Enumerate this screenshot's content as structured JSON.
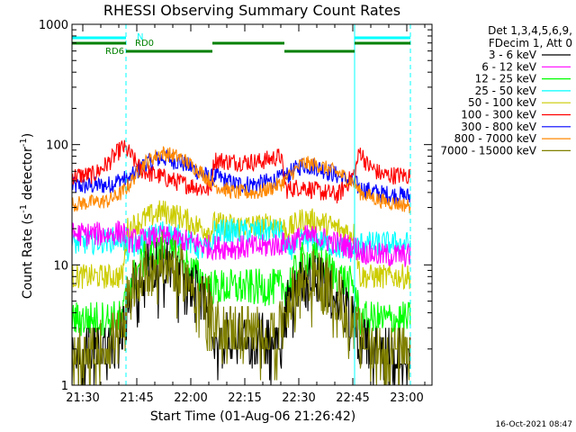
{
  "chart_data": {
    "type": "line",
    "title": "RHESSI Observing Summary Count Rates",
    "xlabel": "Start Time (01-Aug-06 21:26:42)",
    "ylabel_main": "Count Rate (s",
    "ylabel_sup1": "-1",
    "ylabel_mid": " detector",
    "ylabel_sup2": "-1",
    "ylabel_end": ")",
    "yscale": "log",
    "xlim_min": [
      0,
      100
    ],
    "ylim": [
      1,
      1000
    ],
    "x_ticks": [
      {
        "value": 3,
        "label": "21:30"
      },
      {
        "value": 18,
        "label": "21:45"
      },
      {
        "value": 33,
        "label": "22:00"
      },
      {
        "value": 48,
        "label": "22:15"
      },
      {
        "value": 63,
        "label": "22:30"
      },
      {
        "value": 78,
        "label": "22:45"
      },
      {
        "value": 93,
        "label": "23:00"
      }
    ],
    "y_ticks": [
      {
        "value": 1,
        "label": "1"
      },
      {
        "value": 10,
        "label": "10"
      },
      {
        "value": 100,
        "label": "100"
      },
      {
        "value": 1000,
        "label": "1000"
      }
    ],
    "night_boundaries": [
      0,
      15,
      78.5,
      94
    ],
    "eclipse_ranges": [
      [
        0,
        15
      ],
      [
        78.5,
        94
      ]
    ],
    "flags": [
      {
        "name": "N",
        "color": "#00ffff",
        "y": 0,
        "segments": [
          [
            0,
            15
          ],
          [
            78.5,
            94
          ]
        ]
      },
      {
        "name": "RD0",
        "color": "#008000",
        "y": 1,
        "segments": [
          [
            0,
            15
          ],
          [
            39,
            59
          ],
          [
            78.5,
            94
          ]
        ]
      },
      {
        "name": "RD6",
        "color": "#008000",
        "y": 2,
        "segments": [
          [
            15,
            39
          ],
          [
            59,
            78.5
          ]
        ]
      }
    ],
    "legend": {
      "header_line1": "Det 1,3,4,5,6,9,",
      "header_line2": "FDecim 1, Att 0",
      "entries": [
        {
          "label": "3 - 6 keV",
          "color": "#000000"
        },
        {
          "label": "6 - 12 keV",
          "color": "#ff00ff"
        },
        {
          "label": "12 - 25 keV",
          "color": "#00ff00"
        },
        {
          "label": "25 - 50 keV",
          "color": "#00ffff"
        },
        {
          "label": "50 - 100 keV",
          "color": "#cccc00"
        },
        {
          "label": "100 - 300 keV",
          "color": "#ff0000"
        },
        {
          "label": "300 - 800 keV",
          "color": "#0000ff"
        },
        {
          "label": "800 - 7000 keV",
          "color": "#ff8800"
        },
        {
          "label": "7000 - 15000 keV",
          "color": "#808000"
        }
      ]
    },
    "series": [
      {
        "name": "300 - 800 keV",
        "color": "#0000ff",
        "noise": 0.03,
        "points": [
          [
            0,
            45
          ],
          [
            10,
            46
          ],
          [
            14,
            52
          ],
          [
            15.5,
            50
          ],
          [
            20,
            68
          ],
          [
            25,
            78
          ],
          [
            30,
            72
          ],
          [
            35,
            60
          ],
          [
            38.5,
            52
          ],
          [
            39.5,
            55
          ],
          [
            45,
            47
          ],
          [
            52,
            47
          ],
          [
            58,
            52
          ],
          [
            59.5,
            55
          ],
          [
            64,
            68
          ],
          [
            68,
            65
          ],
          [
            74,
            55
          ],
          [
            78.5,
            48
          ],
          [
            80,
            43
          ],
          [
            86,
            39
          ],
          [
            94,
            37
          ]
        ]
      },
      {
        "name": "100 - 300 keV",
        "color": "#ff0000",
        "noise": 0.03,
        "points": [
          [
            0,
            55
          ],
          [
            6,
            56
          ],
          [
            10,
            70
          ],
          [
            14,
            95
          ],
          [
            15.5,
            88
          ],
          [
            19,
            62
          ],
          [
            22,
            57
          ],
          [
            24,
            55
          ],
          [
            30,
            48
          ],
          [
            38.5,
            42
          ],
          [
            39.5,
            75
          ],
          [
            44,
            72
          ],
          [
            52,
            72
          ],
          [
            58,
            80
          ],
          [
            59.5,
            42
          ],
          [
            64,
            45
          ],
          [
            68,
            41
          ],
          [
            74,
            38
          ],
          [
            78.5,
            58
          ],
          [
            80,
            90
          ],
          [
            82,
            68
          ],
          [
            86,
            56
          ],
          [
            94,
            55
          ]
        ]
      },
      {
        "name": "800 - 7000 keV",
        "color": "#ff8800",
        "noise": 0.025,
        "points": [
          [
            0,
            32
          ],
          [
            10,
            34
          ],
          [
            14,
            40
          ],
          [
            15.5,
            45
          ],
          [
            20,
            70
          ],
          [
            25,
            86
          ],
          [
            30,
            78
          ],
          [
            35,
            62
          ],
          [
            38.5,
            50
          ],
          [
            39.5,
            46
          ],
          [
            45,
            40
          ],
          [
            52,
            40
          ],
          [
            58,
            47
          ],
          [
            59.5,
            52
          ],
          [
            64,
            70
          ],
          [
            68,
            68
          ],
          [
            74,
            58
          ],
          [
            78.5,
            48
          ],
          [
            80,
            40
          ],
          [
            86,
            34
          ],
          [
            94,
            31
          ]
        ]
      },
      {
        "name": "50 - 100 keV",
        "color": "#cccc00",
        "noise": 0.04,
        "points": [
          [
            0,
            8
          ],
          [
            14,
            8
          ],
          [
            15.5,
            20
          ],
          [
            20,
            24
          ],
          [
            25,
            28
          ],
          [
            30,
            25
          ],
          [
            35,
            21
          ],
          [
            38.5,
            19
          ],
          [
            39.5,
            22
          ],
          [
            45,
            21
          ],
          [
            52,
            21
          ],
          [
            58,
            22
          ],
          [
            59.5,
            19
          ],
          [
            64,
            24
          ],
          [
            68,
            23
          ],
          [
            74,
            20
          ],
          [
            78.5,
            18
          ],
          [
            80,
            8
          ],
          [
            94,
            8
          ]
        ]
      },
      {
        "name": "25 - 50 keV",
        "color": "#00ffff",
        "noise": 0.04,
        "points": [
          [
            0,
            15
          ],
          [
            10,
            16
          ],
          [
            14,
            17
          ],
          [
            15.5,
            13
          ],
          [
            20,
            16
          ],
          [
            25,
            19
          ],
          [
            30,
            17
          ],
          [
            35,
            14
          ],
          [
            38.5,
            13
          ],
          [
            39.5,
            19
          ],
          [
            45,
            19
          ],
          [
            52,
            19
          ],
          [
            58,
            19
          ],
          [
            59.5,
            13
          ],
          [
            64,
            16
          ],
          [
            68,
            16
          ],
          [
            74,
            14
          ],
          [
            78.5,
            13
          ],
          [
            80,
            15
          ],
          [
            86,
            15
          ],
          [
            94,
            15
          ]
        ]
      },
      {
        "name": "6 - 12 keV",
        "color": "#ff00ff",
        "noise": 0.04,
        "points": [
          [
            0,
            18
          ],
          [
            10,
            18
          ],
          [
            14,
            19
          ],
          [
            15.5,
            16
          ],
          [
            20,
            16
          ],
          [
            25,
            17
          ],
          [
            30,
            16
          ],
          [
            35,
            15
          ],
          [
            38.5,
            14
          ],
          [
            39.5,
            14
          ],
          [
            45,
            14
          ],
          [
            52,
            14
          ],
          [
            58,
            15
          ],
          [
            59.5,
            15
          ],
          [
            64,
            17
          ],
          [
            68,
            17
          ],
          [
            74,
            15
          ],
          [
            78.5,
            14
          ],
          [
            80,
            13
          ],
          [
            86,
            12
          ],
          [
            94,
            12
          ]
        ]
      },
      {
        "name": "12 - 25 keV",
        "color": "#00ff00",
        "noise": 0.06,
        "points": [
          [
            0,
            3.5
          ],
          [
            14,
            3.6
          ],
          [
            15.5,
            6.5
          ],
          [
            20,
            11
          ],
          [
            25,
            13
          ],
          [
            30,
            11
          ],
          [
            35,
            8
          ],
          [
            38.5,
            6.5
          ],
          [
            39.5,
            6.5
          ],
          [
            45,
            6.5
          ],
          [
            52,
            6.5
          ],
          [
            58,
            6.5
          ],
          [
            59.5,
            6.5
          ],
          [
            64,
            11
          ],
          [
            68,
            11
          ],
          [
            74,
            8
          ],
          [
            78.5,
            6.5
          ],
          [
            80,
            3.5
          ],
          [
            94,
            3.5
          ]
        ]
      },
      {
        "name": "3 - 6 keV",
        "color": "#000000",
        "noise": 0.08,
        "points": [
          [
            0,
            1.6
          ],
          [
            10,
            2.2
          ],
          [
            14,
            2.8
          ],
          [
            15.5,
            5.5
          ],
          [
            20,
            9
          ],
          [
            25,
            10.5
          ],
          [
            30,
            9
          ],
          [
            35,
            6
          ],
          [
            38.5,
            4.5
          ],
          [
            39.5,
            2.6
          ],
          [
            45,
            2.5
          ],
          [
            52,
            2.5
          ],
          [
            58,
            2.6
          ],
          [
            59.5,
            4.5
          ],
          [
            64,
            8
          ],
          [
            68,
            7.8
          ],
          [
            74,
            5.5
          ],
          [
            78.5,
            3.5
          ],
          [
            80,
            2.4
          ],
          [
            86,
            2.0
          ],
          [
            94,
            1.7
          ]
        ]
      },
      {
        "name": "7000 - 15000 keV",
        "color": "#808000",
        "noise": 0.09,
        "points": [
          [
            0,
            1.5
          ],
          [
            10,
            2.2
          ],
          [
            14,
            2.8
          ],
          [
            15.5,
            5.5
          ],
          [
            20,
            9
          ],
          [
            25,
            11
          ],
          [
            30,
            9
          ],
          [
            35,
            6
          ],
          [
            38.5,
            4.5
          ],
          [
            39.5,
            3
          ],
          [
            45,
            2.8
          ],
          [
            52,
            2.8
          ],
          [
            58,
            2.8
          ],
          [
            59.5,
            4.5
          ],
          [
            64,
            8
          ],
          [
            68,
            8
          ],
          [
            74,
            5.5
          ],
          [
            78.5,
            3.5
          ],
          [
            80,
            2.4
          ],
          [
            86,
            2.0
          ],
          [
            94,
            1.7
          ]
        ]
      }
    ]
  },
  "timestamp": "16-Oct-2021 08:47"
}
